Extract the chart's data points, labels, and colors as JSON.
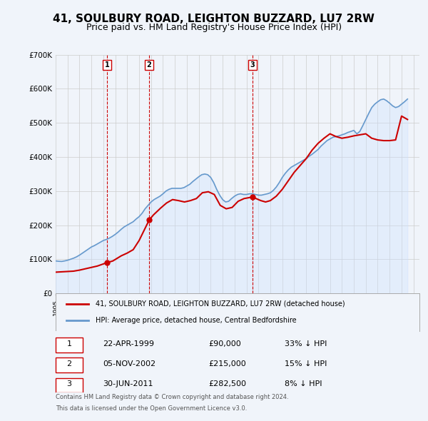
{
  "title": "41, SOULBURY ROAD, LEIGHTON BUZZARD, LU7 2RW",
  "subtitle": "Price paid vs. HM Land Registry's House Price Index (HPI)",
  "title_fontsize": 11,
  "subtitle_fontsize": 9,
  "ylim": [
    0,
    700000
  ],
  "yticks": [
    0,
    100000,
    200000,
    300000,
    400000,
    500000,
    600000,
    700000
  ],
  "ytick_labels": [
    "£0",
    "£100K",
    "£200K",
    "£300K",
    "£400K",
    "£500K",
    "£600K",
    "£700K"
  ],
  "xmin": 1995.0,
  "xmax": 2025.5,
  "grid_color": "#cccccc",
  "background_color": "#f0f4fa",
  "plot_bg_color": "#f0f4fa",
  "price_paid_color": "#cc0000",
  "hpi_color": "#6699cc",
  "hpi_fill_color": "#cce0ff",
  "sale_marker_color": "#cc0000",
  "dashed_line_color": "#cc0000",
  "legend_label_price": "41, SOULBURY ROAD, LEIGHTON BUZZARD, LU7 2RW (detached house)",
  "legend_label_hpi": "HPI: Average price, detached house, Central Bedfordshire",
  "transactions": [
    {
      "num": 1,
      "date": "22-APR-1999",
      "year": 1999.31,
      "price": 90000,
      "pct": "33%",
      "dir": "↓"
    },
    {
      "num": 2,
      "date": "05-NOV-2002",
      "year": 2002.84,
      "price": 215000,
      "pct": "15%",
      "dir": "↓"
    },
    {
      "num": 3,
      "date": "30-JUN-2011",
      "year": 2011.5,
      "price": 282500,
      "pct": "8%",
      "dir": "↓"
    }
  ],
  "footer_line1": "Contains HM Land Registry data © Crown copyright and database right 2024.",
  "footer_line2": "This data is licensed under the Open Government Licence v3.0.",
  "hpi_data_x": [
    1995.0,
    1995.25,
    1995.5,
    1995.75,
    1996.0,
    1996.25,
    1996.5,
    1996.75,
    1997.0,
    1997.25,
    1997.5,
    1997.75,
    1998.0,
    1998.25,
    1998.5,
    1998.75,
    1999.0,
    1999.25,
    1999.5,
    1999.75,
    2000.0,
    2000.25,
    2000.5,
    2000.75,
    2001.0,
    2001.25,
    2001.5,
    2001.75,
    2002.0,
    2002.25,
    2002.5,
    2002.75,
    2003.0,
    2003.25,
    2003.5,
    2003.75,
    2004.0,
    2004.25,
    2004.5,
    2004.75,
    2005.0,
    2005.25,
    2005.5,
    2005.75,
    2006.0,
    2006.25,
    2006.5,
    2006.75,
    2007.0,
    2007.25,
    2007.5,
    2007.75,
    2008.0,
    2008.25,
    2008.5,
    2008.75,
    2009.0,
    2009.25,
    2009.5,
    2009.75,
    2010.0,
    2010.25,
    2010.5,
    2010.75,
    2011.0,
    2011.25,
    2011.5,
    2011.75,
    2012.0,
    2012.25,
    2012.5,
    2012.75,
    2013.0,
    2013.25,
    2013.5,
    2013.75,
    2014.0,
    2014.25,
    2014.5,
    2014.75,
    2015.0,
    2015.25,
    2015.5,
    2015.75,
    2016.0,
    2016.25,
    2016.5,
    2016.75,
    2017.0,
    2017.25,
    2017.5,
    2017.75,
    2018.0,
    2018.25,
    2018.5,
    2018.75,
    2019.0,
    2019.25,
    2019.5,
    2019.75,
    2020.0,
    2020.25,
    2020.5,
    2020.75,
    2021.0,
    2021.25,
    2021.5,
    2021.75,
    2022.0,
    2022.25,
    2022.5,
    2022.75,
    2023.0,
    2023.25,
    2023.5,
    2023.75,
    2024.0,
    2024.25,
    2024.5
  ],
  "hpi_data_y": [
    95000,
    94000,
    93500,
    95000,
    97000,
    100000,
    103000,
    107000,
    112000,
    118000,
    124000,
    130000,
    136000,
    140000,
    145000,
    150000,
    155000,
    158000,
    162000,
    167000,
    173000,
    180000,
    188000,
    195000,
    200000,
    205000,
    210000,
    218000,
    225000,
    235000,
    248000,
    258000,
    268000,
    275000,
    280000,
    285000,
    292000,
    300000,
    305000,
    308000,
    308000,
    308000,
    308000,
    310000,
    315000,
    320000,
    328000,
    335000,
    342000,
    348000,
    350000,
    348000,
    340000,
    325000,
    305000,
    288000,
    275000,
    268000,
    270000,
    278000,
    285000,
    290000,
    292000,
    290000,
    290000,
    292000,
    292000,
    290000,
    288000,
    288000,
    290000,
    292000,
    295000,
    302000,
    312000,
    325000,
    340000,
    352000,
    362000,
    370000,
    375000,
    380000,
    385000,
    390000,
    395000,
    402000,
    408000,
    415000,
    422000,
    432000,
    440000,
    448000,
    453000,
    458000,
    460000,
    462000,
    465000,
    468000,
    472000,
    475000,
    478000,
    468000,
    475000,
    492000,
    510000,
    528000,
    545000,
    555000,
    562000,
    568000,
    570000,
    565000,
    558000,
    550000,
    545000,
    548000,
    555000,
    562000,
    570000
  ],
  "price_paid_x": [
    1995.0,
    1995.5,
    1996.0,
    1996.5,
    1997.0,
    1997.5,
    1998.0,
    1998.5,
    1999.31,
    1999.8,
    2000.5,
    2001.0,
    2001.5,
    2002.0,
    2002.84,
    2003.2,
    2003.8,
    2004.3,
    2004.8,
    2005.3,
    2005.8,
    2006.3,
    2006.8,
    2007.3,
    2007.8,
    2008.3,
    2008.8,
    2009.3,
    2009.8,
    2010.3,
    2010.8,
    2011.5,
    2011.8,
    2012.2,
    2012.6,
    2013.0,
    2013.5,
    2014.0,
    2014.5,
    2015.0,
    2015.5,
    2016.0,
    2016.5,
    2017.0,
    2017.5,
    2018.0,
    2018.5,
    2019.0,
    2019.5,
    2020.0,
    2020.5,
    2021.0,
    2021.5,
    2022.0,
    2022.5,
    2023.0,
    2023.5,
    2024.0,
    2024.5
  ],
  "price_paid_y": [
    62000,
    63000,
    64000,
    65000,
    68000,
    72000,
    76000,
    80000,
    90000,
    95000,
    110000,
    118000,
    128000,
    155000,
    215000,
    230000,
    250000,
    265000,
    275000,
    272000,
    268000,
    272000,
    278000,
    295000,
    298000,
    290000,
    258000,
    248000,
    252000,
    270000,
    278000,
    282500,
    278000,
    272000,
    268000,
    272000,
    285000,
    305000,
    330000,
    355000,
    375000,
    395000,
    420000,
    440000,
    455000,
    468000,
    460000,
    455000,
    458000,
    462000,
    465000,
    468000,
    455000,
    450000,
    448000,
    448000,
    450000,
    520000,
    510000
  ]
}
